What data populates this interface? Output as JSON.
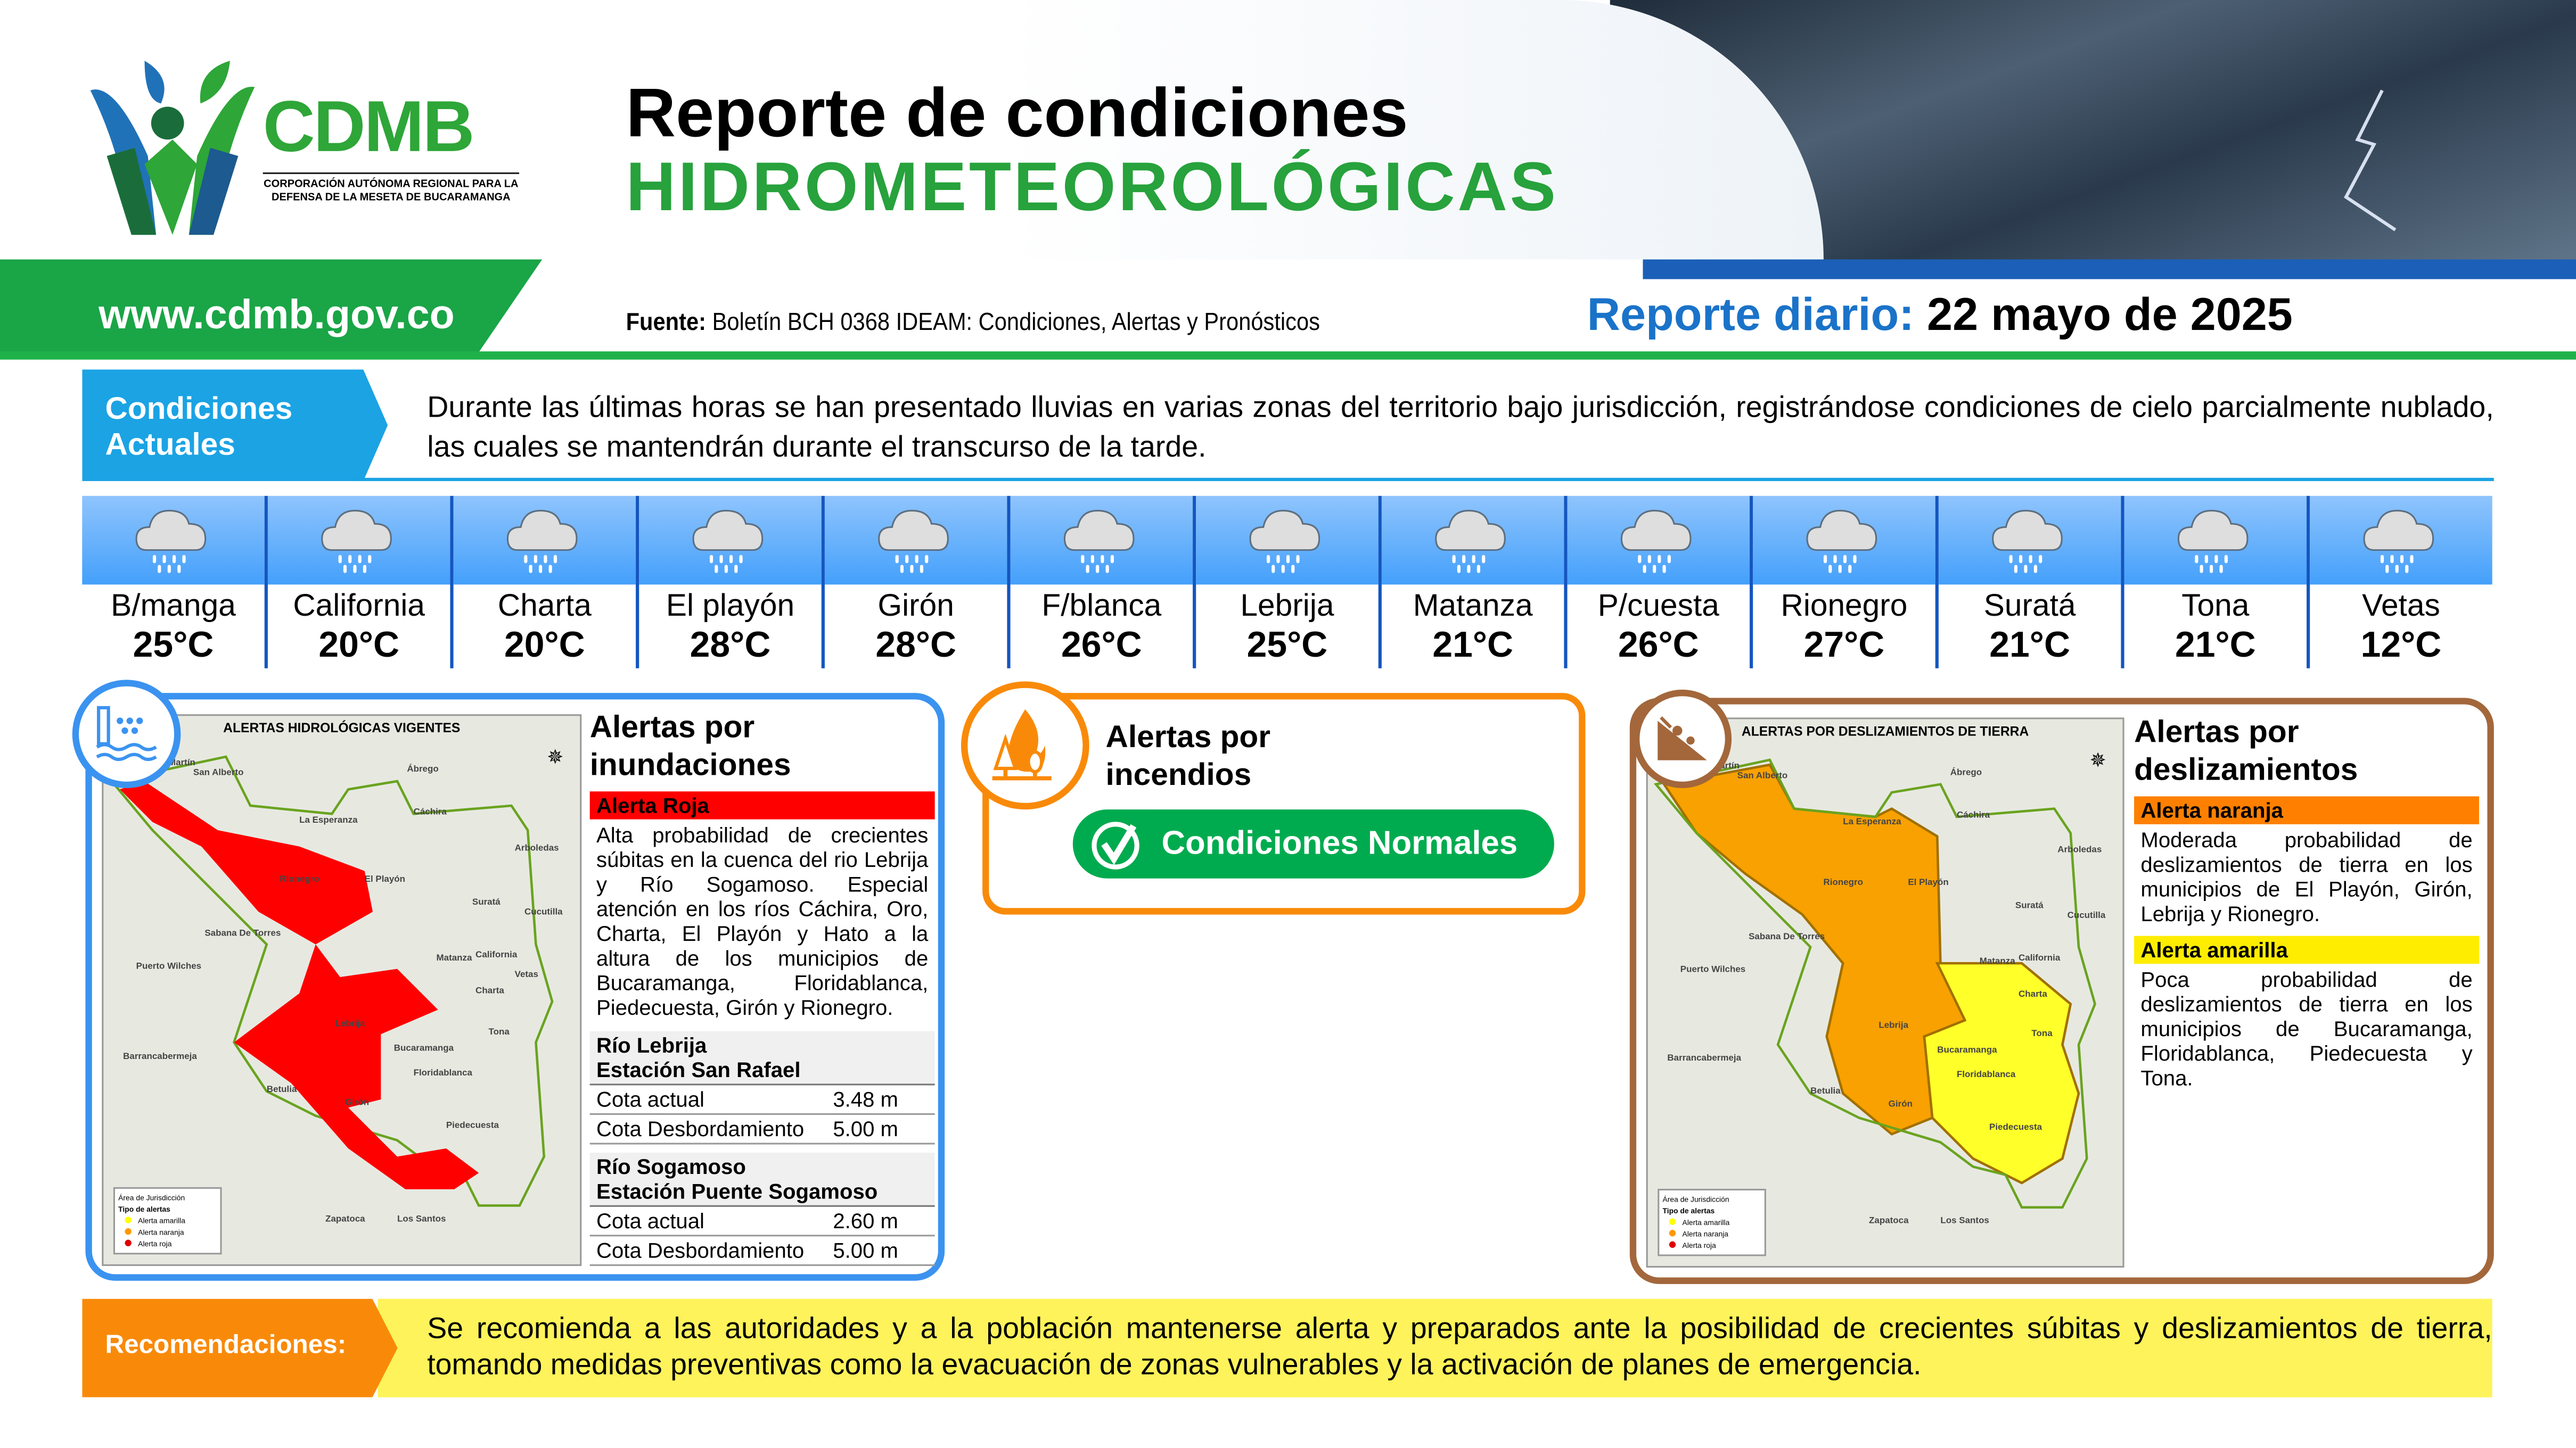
{
  "header": {
    "logo_text": "CDMB",
    "logo_subtitle": "CORPORACIÓN AUTÓNOMA REGIONAL PARA LA DEFENSA DE LA MESETA DE BUCARAMANGA",
    "title_line1": "Reporte de condiciones",
    "title_line2": "HIDROMETEOROLÓGICAS",
    "url": "www.cdmb.gov.co",
    "source_label": "Fuente:",
    "source_text": "Boletín BCH 0368 IDEAM: Condiciones, Alertas y Pronósticos",
    "report_label": "Reporte diario:",
    "report_date": "22 mayo de 2025"
  },
  "conditions": {
    "label": "Condiciones Actuales",
    "text": "Durante las últimas horas se han presentado lluvias en varias zonas del territorio bajo jurisdicción, registrándose condiciones de cielo parcialmente nublado, las cuales se mantendrán durante el transcurso de la tarde."
  },
  "weather": [
    {
      "name": "B/manga",
      "temp": "25°C",
      "icon": "rain-cloud-icon"
    },
    {
      "name": "California",
      "temp": "20°C",
      "icon": "rain-cloud-icon"
    },
    {
      "name": "Charta",
      "temp": "20°C",
      "icon": "rain-cloud-icon"
    },
    {
      "name": "El playón",
      "temp": "28°C",
      "icon": "rain-cloud-icon"
    },
    {
      "name": "Girón",
      "temp": "28°C",
      "icon": "rain-cloud-icon"
    },
    {
      "name": "F/blanca",
      "temp": "26°C",
      "icon": "rain-cloud-icon"
    },
    {
      "name": "Lebrija",
      "temp": "25°C",
      "icon": "rain-cloud-icon"
    },
    {
      "name": "Matanza",
      "temp": "21°C",
      "icon": "rain-cloud-icon"
    },
    {
      "name": "P/cuesta",
      "temp": "26°C",
      "icon": "rain-cloud-icon"
    },
    {
      "name": "Rionegro",
      "temp": "27°C",
      "icon": "rain-cloud-icon"
    },
    {
      "name": "Suratá",
      "temp": "21°C",
      "icon": "rain-cloud-icon"
    },
    {
      "name": "Tona",
      "temp": "21°C",
      "icon": "rain-cloud-icon"
    },
    {
      "name": "Vetas",
      "temp": "12°C",
      "icon": "rain-cloud-icon"
    }
  ],
  "flood": {
    "title": "Alertas por inundaciones",
    "map_title": "ALERTAS HIDROLÓGICAS VIGENTES",
    "alert_label": "Alerta Roja",
    "alert_color": "#ff0000",
    "text": "Alta probabilidad de crecientes súbitas en la cuenca del rio Lebrija y Río Sogamoso. Especial atención en los ríos Cáchira, Oro, Charta, El Playón y Hato a la altura de los municipios de Bucaramanga, Floridablanca, Piedecuesta, Girón y Rionegro.",
    "stations": [
      {
        "river": "Río Lebrija",
        "station": "Estación San Rafael",
        "rows": [
          {
            "label": "Cota actual",
            "value": "3.48 m"
          },
          {
            "label": "Cota Desbordamiento",
            "value": "5.00 m"
          }
        ]
      },
      {
        "river": "Río Sogamoso",
        "station": "Estación Puente Sogamoso",
        "rows": [
          {
            "label": "Cota actual",
            "value": "2.60 m"
          },
          {
            "label": "Cota Desbordamiento",
            "value": "5.00 m"
          }
        ]
      }
    ],
    "places": [
      "San Martín",
      "San Alberto",
      "Ábrego",
      "La Esperanza",
      "Cáchira",
      "El Playón",
      "Rionegro",
      "Sabana De Torres",
      "Puerto Wilches",
      "Lebrija",
      "Bucaramanga",
      "Floridablanca",
      "Barrancabermeja",
      "Betulia",
      "Girón",
      "Piedecuesta",
      "Suratá",
      "Matanza",
      "California",
      "Vetas",
      "Charta",
      "Tona",
      "Zapatoca",
      "Los Santos",
      "Arboledas",
      "Cucutilla"
    ],
    "legend": {
      "area": "Área de Jurisdicción",
      "types_title": "Tipo de alertas",
      "types": [
        "Alerta amarilla",
        "Alerta naranja",
        "Alerta roja"
      ]
    }
  },
  "fire": {
    "title": "Alertas por incendios",
    "status": "Condiciones Normales",
    "status_color": "#00ab4f"
  },
  "landslide": {
    "title": "Alertas por deslizamientos",
    "map_title": "ALERTAS POR DESLIZAMIENTOS DE TIERRA",
    "alerts": [
      {
        "label": "Alerta naranja",
        "color": "#ff8000",
        "text": "Moderada probabilidad de deslizamientos de tierra en los municipios de El Playón, Girón, Lebrija y Rionegro."
      },
      {
        "label": "Alerta amarilla",
        "color": "#ffed00",
        "text": "Poca probabilidad de deslizamientos de tierra en los municipios de Bucaramanga, Floridablanca, Piedecuesta y Tona."
      }
    ],
    "places": [
      "San Martín",
      "San Alberto",
      "Ábrego",
      "La Esperanza",
      "Cáchira",
      "El Playón",
      "Rionegro",
      "Sabana De Torres",
      "Puerto Wilches",
      "Lebrija",
      "Bucaramanga",
      "Floridablanca",
      "Barrancabermeja",
      "Betulia",
      "Girón",
      "Piedecuesta",
      "Tona",
      "Suratá",
      "Charta",
      "Matanza",
      "California",
      "Zapatoca",
      "Los Santos",
      "Arboledas",
      "Cucutilla"
    ],
    "legend": {
      "area": "Área de Jurisdicción",
      "types_title": "Tipo de alertas",
      "types": [
        "Alerta amarilla",
        "Alerta naranja",
        "Alerta roja"
      ]
    }
  },
  "recommendations": {
    "label": "Recomendaciones:",
    "text": "Se recomienda a las autoridades y a la población mantenerse alerta y preparados ante la posibilidad de crecientes súbitas y deslizamientos de tierra, tomando medidas preventivas como la evacuación de zonas vulnerables y la activación de planes de emergencia."
  }
}
